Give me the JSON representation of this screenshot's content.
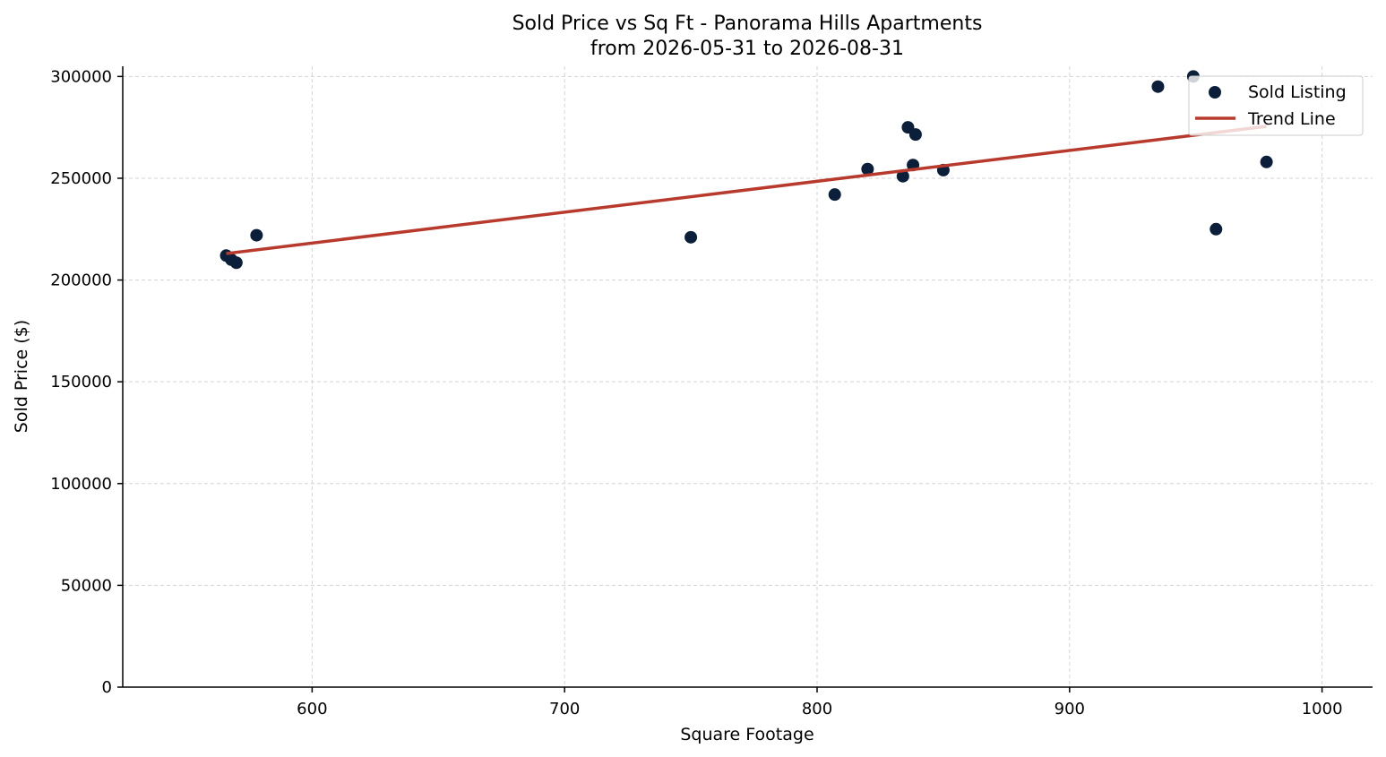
{
  "chart_data": {
    "type": "scatter",
    "title_line1": "Sold Price vs Sq Ft - Panorama Hills Apartments",
    "title_line2": "from 2026-05-31 to 2026-08-31",
    "xlabel": "Square Footage",
    "ylabel": "Sold Price ($)",
    "xlim": [
      525,
      1020
    ],
    "ylim": [
      0,
      305000
    ],
    "xticks": [
      600,
      700,
      800,
      900,
      1000
    ],
    "yticks": [
      0,
      50000,
      100000,
      150000,
      200000,
      250000,
      300000
    ],
    "grid": true,
    "legend_position": "top-right",
    "series": [
      {
        "name": "Sold Listing",
        "kind": "scatter",
        "color": "#0b1f3a",
        "points": [
          [
            566,
            212000
          ],
          [
            568,
            210000
          ],
          [
            570,
            208500
          ],
          [
            578,
            222000
          ],
          [
            750,
            221000
          ],
          [
            807,
            242000
          ],
          [
            820,
            254500
          ],
          [
            834,
            251000
          ],
          [
            836,
            275000
          ],
          [
            838,
            256500
          ],
          [
            839,
            271500
          ],
          [
            850,
            254000
          ],
          [
            935,
            295000
          ],
          [
            949,
            300000
          ],
          [
            958,
            225000
          ],
          [
            978,
            258000
          ]
        ]
      },
      {
        "name": "Trend Line",
        "kind": "line",
        "color": "#b83a2d",
        "points": [
          [
            566,
            213000
          ],
          [
            978,
            275500
          ]
        ]
      }
    ]
  }
}
